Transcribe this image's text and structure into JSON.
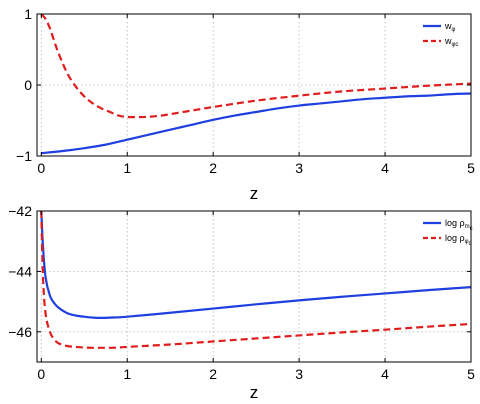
{
  "chart_data": [
    {
      "type": "line",
      "xlabel": "z",
      "ylabel": "",
      "xlim": [
        -0.05,
        5
      ],
      "ylim": [
        -1,
        1
      ],
      "xticks": [
        "0",
        "1",
        "2",
        "3",
        "4",
        "5"
      ],
      "yticks": [
        "−1",
        "0",
        "1"
      ],
      "grid": true,
      "legend_position": "top-right",
      "series": [
        {
          "legend_main": "w",
          "legend_sub": "φ",
          "color": "#1f3fe0",
          "style": "solid",
          "x": [
            0,
            0.25,
            0.5,
            0.75,
            1,
            1.25,
            1.5,
            1.75,
            2,
            2.25,
            2.5,
            2.75,
            3,
            3.25,
            3.5,
            3.75,
            4,
            4.25,
            4.5,
            4.75,
            5
          ],
          "y": [
            -0.96,
            -0.93,
            -0.89,
            -0.84,
            -0.77,
            -0.7,
            -0.63,
            -0.56,
            -0.49,
            -0.43,
            -0.38,
            -0.33,
            -0.29,
            -0.26,
            -0.23,
            -0.2,
            -0.18,
            -0.16,
            -0.15,
            -0.13,
            -0.12
          ]
        },
        {
          "legend_main": "w",
          "legend_sub": "φc",
          "color": "#e01c1c",
          "style": "dashed",
          "x": [
            0,
            0.05,
            0.1,
            0.15,
            0.2,
            0.3,
            0.4,
            0.5,
            0.6,
            0.7,
            0.8,
            0.9,
            1,
            1.2,
            1.4,
            1.6,
            1.8,
            2,
            2.5,
            3,
            3.5,
            4,
            4.5,
            5
          ],
          "y": [
            1.0,
            0.93,
            0.8,
            0.62,
            0.45,
            0.17,
            -0.02,
            -0.16,
            -0.26,
            -0.33,
            -0.38,
            -0.43,
            -0.45,
            -0.45,
            -0.43,
            -0.39,
            -0.35,
            -0.31,
            -0.22,
            -0.15,
            -0.09,
            -0.05,
            -0.01,
            0.02
          ]
        }
      ]
    },
    {
      "type": "line",
      "xlabel": "z",
      "ylabel": "",
      "xlim": [
        -0.05,
        5
      ],
      "ylim": [
        -47,
        -42
      ],
      "xticks": [
        "0",
        "1",
        "2",
        "3",
        "4",
        "5"
      ],
      "yticks": [
        "−46",
        "−44",
        "−42"
      ],
      "grid": true,
      "legend_position": "top-right",
      "series": [
        {
          "legend_main": "log ρ",
          "legend_sub": "m",
          "legend_subsub": "c",
          "color": "#1f3fe0",
          "style": "solid",
          "x": [
            0,
            0.02,
            0.05,
            0.1,
            0.15,
            0.2,
            0.3,
            0.4,
            0.5,
            0.6,
            0.7,
            0.8,
            0.9,
            1,
            1.5,
            2,
            2.5,
            3,
            3.5,
            4,
            4.5,
            5
          ],
          "y": [
            -42.0,
            -43.2,
            -44.2,
            -44.8,
            -45.05,
            -45.2,
            -45.38,
            -45.46,
            -45.5,
            -45.53,
            -45.54,
            -45.53,
            -45.52,
            -45.5,
            -45.37,
            -45.23,
            -45.09,
            -44.96,
            -44.84,
            -44.73,
            -44.62,
            -44.52
          ]
        },
        {
          "legend_main": "log ρ",
          "legend_sub": "φ",
          "legend_subsub": "c",
          "color": "#e01c1c",
          "style": "dashed",
          "x": [
            0,
            0.02,
            0.05,
            0.1,
            0.15,
            0.2,
            0.3,
            0.4,
            0.5,
            0.6,
            0.7,
            0.8,
            0.9,
            1,
            1.5,
            2,
            2.5,
            3,
            3.5,
            4,
            4.5,
            5
          ],
          "y": [
            -42.0,
            -44.2,
            -45.4,
            -46.0,
            -46.25,
            -46.38,
            -46.47,
            -46.5,
            -46.52,
            -46.53,
            -46.53,
            -46.53,
            -46.52,
            -46.5,
            -46.42,
            -46.32,
            -46.22,
            -46.12,
            -46.02,
            -45.93,
            -45.83,
            -45.74
          ]
        }
      ]
    }
  ]
}
